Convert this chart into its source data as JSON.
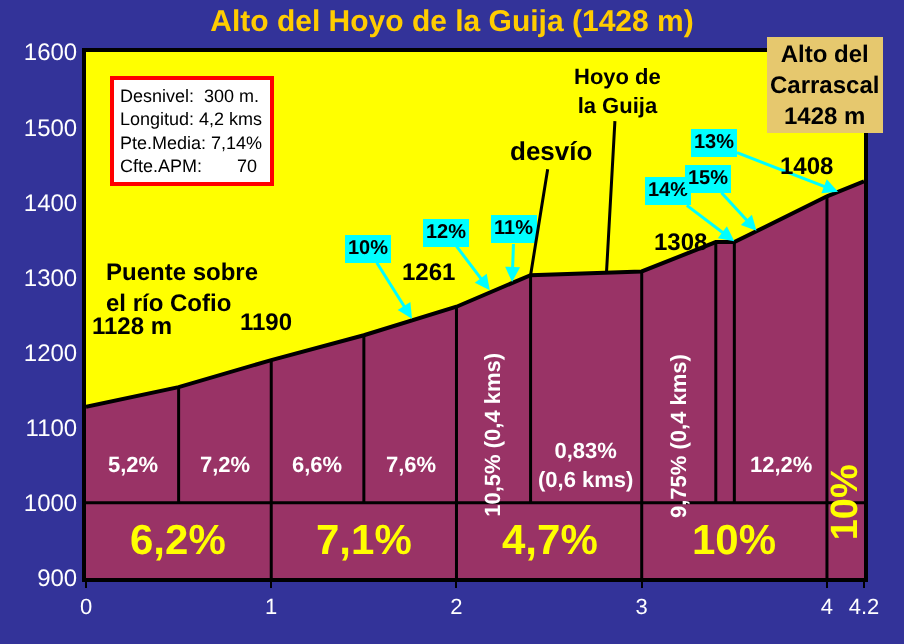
{
  "chart_data": {
    "type": "area",
    "title": "Alto del Hoyo de la Guija (1428 m)",
    "x": [
      0,
      0.5,
      1,
      1.5,
      2,
      2.4,
      3,
      3.4,
      3.5,
      4,
      4.2
    ],
    "series": [
      {
        "color": "#993366",
        "values": [
          1128,
          1154,
          1190,
          1223,
          1261,
          1303,
          1308,
          1347,
          1347,
          1408,
          1428
        ]
      }
    ],
    "xlim": [
      0,
      4.2
    ],
    "xticks": [
      0,
      1,
      2,
      3,
      4,
      4.2
    ],
    "ylim": [
      900,
      1600
    ],
    "yticks": [
      900,
      1000,
      1100,
      1200,
      1300,
      1400,
      1500,
      1600
    ],
    "grid": false,
    "legend": false,
    "ref_lines": [
      {
        "axis": "y",
        "value": 1000,
        "label": null
      },
      {
        "axis": "x",
        "value": 0.5,
        "label": null
      },
      {
        "axis": "x",
        "value": 1,
        "label": null
      },
      {
        "axis": "x",
        "value": 1.5,
        "label": null
      },
      {
        "axis": "x",
        "value": 2,
        "label": null
      },
      {
        "axis": "x",
        "value": 2.4,
        "label": null
      },
      {
        "axis": "x",
        "value": 3,
        "label": null
      },
      {
        "axis": "x",
        "value": 3.4,
        "label": null
      },
      {
        "axis": "x",
        "value": 3.5,
        "label": null
      },
      {
        "axis": "x",
        "value": 4,
        "label": null
      }
    ],
    "annotations": [
      "Desnivel:  300 m.\nLongitud: 4,2 kms\nPte.Media: 7,14%\nCfte.APM:       70",
      "5,2%",
      "7,2%",
      "6,6%",
      "7,6%",
      "10,5% (0,4 kms)",
      "0,83%\n(0,6 kms)",
      "9,75% (0,4 kms)",
      "12,2%",
      "6,2%",
      "7,1%",
      "4,7%",
      "10%",
      "10%",
      {
        "text": "10%",
        "x": 1.76,
        "y": 1245
      },
      {
        "text": "12%",
        "x": 2.18,
        "y": 1283
      },
      {
        "text": "11%",
        "x": 2.3,
        "y": 1294
      },
      {
        "text": "14%",
        "x": 3.5,
        "y": 1348
      },
      {
        "text": "15%",
        "x": 3.62,
        "y": 1362
      },
      {
        "text": "13%",
        "x": 4.06,
        "y": 1414
      },
      {
        "text": "1128 m",
        "x": 0,
        "y": 1128
      },
      {
        "text": "1190",
        "x": 1,
        "y": 1190
      },
      {
        "text": "1261",
        "x": 2,
        "y": 1261
      },
      {
        "text": "1308",
        "x": 3,
        "y": 1308
      },
      {
        "text": "1408",
        "x": 4,
        "y": 1408
      },
      "Puente sobre\nel río Cofio",
      {
        "text": "desvío",
        "x": 2.4,
        "y": 1303
      },
      {
        "text": "Hoyo de\nla Guija",
        "x": 2.81,
        "y": 1307
      },
      {
        "text": "Alto del\nCarrascal\n1428 m",
        "x": 4.2,
        "y": 1428
      }
    ]
  }
}
